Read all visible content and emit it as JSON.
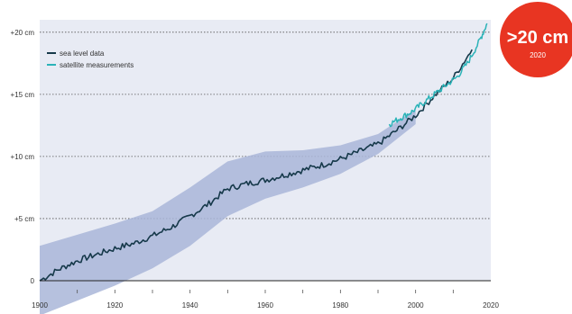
{
  "chart_data": {
    "type": "line",
    "title": "",
    "xlabel": "",
    "ylabel": "",
    "xlim": [
      1900,
      2020
    ],
    "ylim": [
      0,
      21
    ],
    "x_ticks": [
      1900,
      1920,
      1940,
      1960,
      1980,
      2000,
      2020
    ],
    "x_tick_labels": [
      "1900",
      "1920",
      "1940",
      "1960",
      "1980",
      "2000",
      "2020"
    ],
    "y_ticks": [
      0,
      5,
      10,
      15,
      20
    ],
    "y_tick_labels": [
      "0",
      "+5 cm",
      "+10 cm",
      "+15 cm",
      "+20 cm"
    ],
    "grid": "horizontal-dotted",
    "legend_position": "top-left",
    "series": [
      {
        "name": "sea level data",
        "color": "#16394a",
        "x": [
          1900,
          1905,
          1910,
          1915,
          1920,
          1925,
          1930,
          1935,
          1940,
          1945,
          1950,
          1955,
          1960,
          1965,
          1970,
          1975,
          1980,
          1985,
          1990,
          1995,
          2000,
          2005,
          2010,
          2015
        ],
        "y": [
          0,
          0.9,
          1.6,
          2.1,
          2.6,
          3.0,
          3.6,
          4.3,
          5.2,
          6.2,
          7.4,
          7.8,
          8.1,
          8.5,
          8.9,
          9.3,
          9.8,
          10.4,
          11.0,
          12.1,
          13.3,
          14.9,
          16.3,
          18.6
        ]
      },
      {
        "name": "satellite measurements",
        "color": "#2bb3b8",
        "x": [
          1993,
          1996,
          1999,
          2002,
          2005,
          2008,
          2011,
          2014,
          2017,
          2019
        ],
        "y": [
          12.6,
          13.1,
          13.6,
          14.3,
          15.0,
          15.7,
          16.4,
          17.6,
          19.3,
          20.7
        ]
      }
    ],
    "uncertainty_band": {
      "color": "#a9b6d8",
      "x": [
        1900,
        1910,
        1920,
        1930,
        1940,
        1950,
        1960,
        1970,
        1980,
        1990,
        2000
      ],
      "lower": [
        -2.8,
        -1.6,
        -0.4,
        1.0,
        2.8,
        5.2,
        6.6,
        7.5,
        8.6,
        10.2,
        12.6
      ],
      "upper": [
        2.8,
        3.7,
        4.6,
        5.6,
        7.5,
        9.6,
        10.4,
        10.5,
        10.9,
        11.8,
        13.8
      ]
    },
    "annotation": {
      "label": ">20 cm",
      "sublabel": "2020",
      "color": "#e83522"
    }
  }
}
